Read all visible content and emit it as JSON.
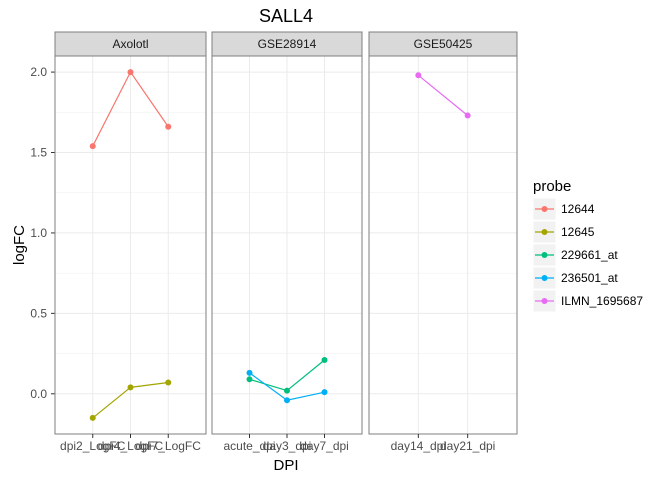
{
  "chart_data": {
    "type": "line",
    "title": "SALL4",
    "xlabel": "DPI",
    "ylabel": "logFC",
    "ylim": [
      -0.25,
      2.1
    ],
    "y_ticks": [
      "0.0",
      "0.5",
      "1.0",
      "1.5",
      "2.0"
    ],
    "grid": true,
    "legend": {
      "title": "probe",
      "placement": "right",
      "entries": [
        {
          "name": "12644",
          "color": "#F8766D"
        },
        {
          "name": "12645",
          "color": "#A3A500"
        },
        {
          "name": "229661_at",
          "color": "#00BF7D"
        },
        {
          "name": "236501_at",
          "color": "#00B0F6"
        },
        {
          "name": "ILMN_1695687",
          "color": "#E76BF3"
        }
      ]
    },
    "panels": [
      {
        "label": "Axolotl",
        "categories": [
          "dpi2_LogFC",
          "dpi4_LogFC",
          "dpi7_LogFC"
        ],
        "series": [
          {
            "name": "12644",
            "color": "#F8766D",
            "values": [
              1.54,
              2.0,
              1.66
            ]
          },
          {
            "name": "12645",
            "color": "#A3A500",
            "values": [
              -0.15,
              0.04,
              0.07
            ]
          }
        ]
      },
      {
        "label": "GSE28914",
        "categories": [
          "acute_dpi",
          "day3_dpi",
          "day7_dpi"
        ],
        "series": [
          {
            "name": "229661_at",
            "color": "#00BF7D",
            "values": [
              0.09,
              0.02,
              0.21
            ]
          },
          {
            "name": "236501_at",
            "color": "#00B0F6",
            "values": [
              0.13,
              -0.04,
              0.01
            ]
          }
        ]
      },
      {
        "label": "GSE50425",
        "categories": [
          "day14_dpi",
          "day21_dpi"
        ],
        "series": [
          {
            "name": "ILMN_1695687",
            "color": "#E76BF3",
            "values": [
              1.98,
              1.73
            ]
          }
        ]
      }
    ]
  }
}
